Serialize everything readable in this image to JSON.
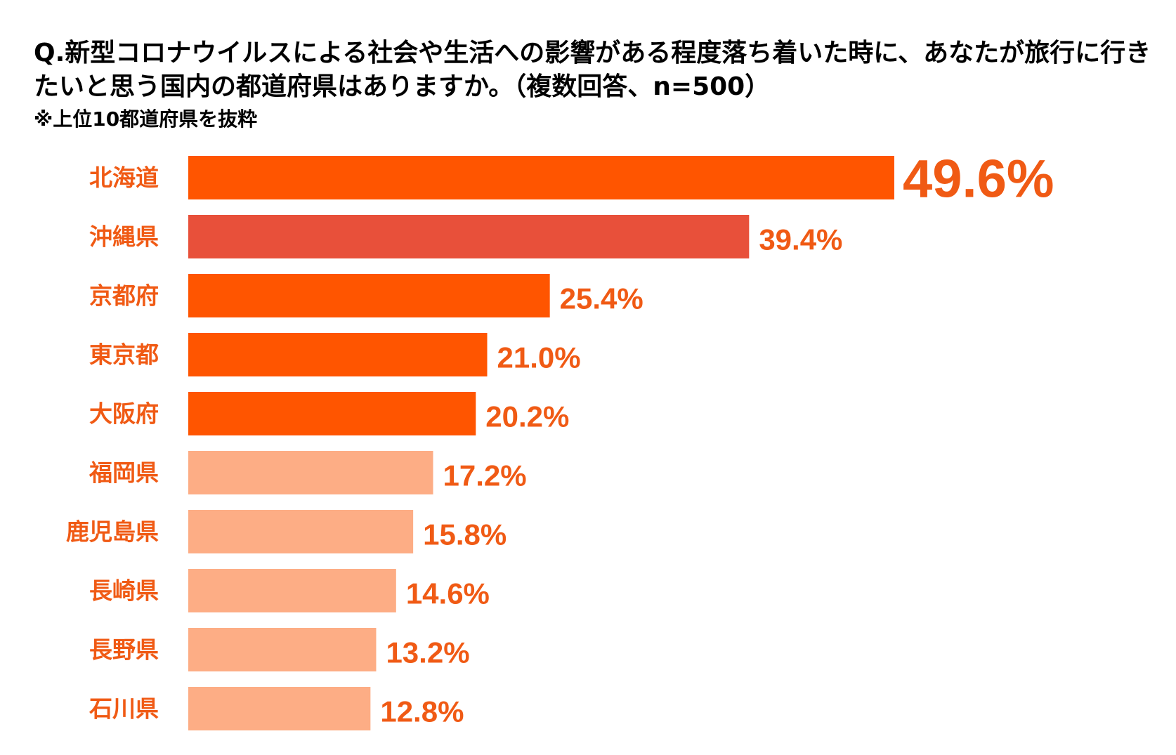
{
  "chart_data": {
    "type": "bar",
    "orientation": "horizontal",
    "title": "Q.新型コロナウイルスによる社会や生活への影響がある程度落ち着いた時に、あなたが旅行に行きたいと思う国内の都道府県はありますか。（複数回答、n=500）",
    "subtitle": "※上位10都道府県を抜粋",
    "categories": [
      "北海道",
      "沖縄県",
      "京都府",
      "東京都",
      "大阪府",
      "福岡県",
      "鹿児島県",
      "長崎県",
      "長野県",
      "石川県"
    ],
    "values": [
      49.6,
      39.4,
      25.4,
      21.0,
      20.2,
      17.2,
      15.8,
      14.6,
      13.2,
      12.8
    ],
    "value_labels": [
      "49.6%",
      "39.4%",
      "25.4%",
      "21.0%",
      "20.2%",
      "17.2%",
      "15.8%",
      "14.6%",
      "13.2%",
      "12.8%"
    ],
    "bar_colors": [
      "#FF5500",
      "#E8503A",
      "#FF5500",
      "#FF5500",
      "#FF5500",
      "#FDAD85",
      "#FDAD85",
      "#FDAD85",
      "#FDAD85",
      "#FDAD85"
    ],
    "label_color": "#F05A14",
    "xlim": [
      0,
      49.6
    ],
    "grid": false,
    "legend": "none",
    "xlabel": "",
    "ylabel": ""
  }
}
